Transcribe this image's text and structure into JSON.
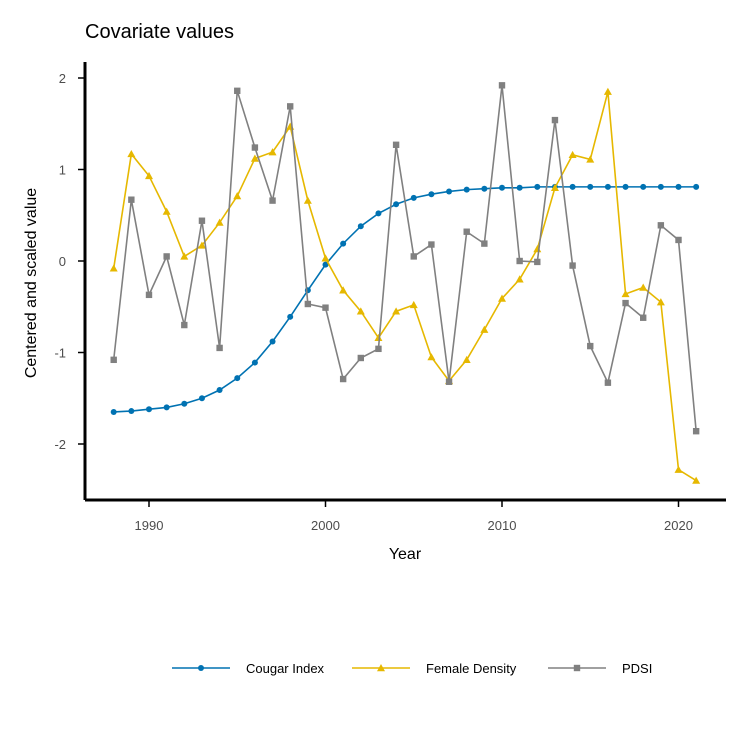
{
  "chart_data": {
    "type": "line",
    "title": "Covariate values",
    "xlabel": "Year",
    "ylabel": "Centered and scaled value",
    "xlim": [
      1984.7,
      1986.5
    ],
    "ylim": [
      -2.6,
      2.1
    ],
    "x_ticks": [
      1990,
      2000,
      2010,
      2020
    ],
    "x_tick_labels": [
      "1990",
      "2000",
      "2010",
      "2020"
    ],
    "y_ticks": [
      -2,
      -1,
      0,
      1,
      2
    ],
    "y_tick_labels": [
      "-2",
      "-1",
      "0",
      "1",
      "2"
    ],
    "grid": false,
    "legend_position": "bottom",
    "x": [
      1988,
      1989,
      1990,
      1991,
      1992,
      1993,
      1994,
      1995,
      1996,
      1997,
      1998,
      1999,
      2000,
      2001,
      2002,
      2003,
      2004,
      2005,
      2006,
      2007,
      2008,
      2009,
      2010,
      2011,
      2012,
      2013,
      2014,
      2015,
      2016,
      2017,
      2018,
      2019,
      2020,
      2021
    ],
    "series": [
      {
        "name": "Cougar Index",
        "color": "#0072B2",
        "marker": "circle",
        "values": [
          -1.65,
          -1.64,
          -1.62,
          -1.6,
          -1.56,
          -1.5,
          -1.41,
          -1.28,
          -1.11,
          -0.88,
          -0.61,
          -0.32,
          -0.04,
          0.19,
          0.38,
          0.52,
          0.62,
          0.69,
          0.73,
          0.76,
          0.78,
          0.79,
          0.8,
          0.8,
          0.81,
          0.81,
          0.81,
          0.81,
          0.81,
          0.81,
          0.81,
          0.81,
          0.81,
          0.81
        ]
      },
      {
        "name": "Female Density",
        "color": "#E6B800",
        "marker": "triangle",
        "values": [
          -0.08,
          1.17,
          0.93,
          0.54,
          0.05,
          0.17,
          0.42,
          0.71,
          1.12,
          1.19,
          1.47,
          0.66,
          0.03,
          -0.32,
          -0.55,
          -0.84,
          -0.55,
          -0.48,
          -1.05,
          -1.31,
          -1.08,
          -0.75,
          -0.41,
          -0.2,
          0.13,
          0.8,
          1.16,
          1.11,
          1.85,
          -0.36,
          -0.29,
          -0.45,
          -2.28,
          -2.4
        ]
      },
      {
        "name": "PDSI",
        "color": "#808080",
        "marker": "square",
        "values": [
          -1.08,
          0.67,
          -0.37,
          0.05,
          -0.7,
          0.44,
          -0.95,
          1.86,
          1.24,
          0.66,
          1.69,
          -0.47,
          -0.51,
          -1.29,
          -1.06,
          -0.96,
          1.27,
          0.05,
          0.18,
          -1.32,
          0.32,
          0.19,
          1.92,
          0.0,
          -0.01,
          1.54,
          -0.05,
          -0.93,
          -1.33,
          -0.46,
          -0.62,
          0.39,
          0.23,
          -1.86
        ]
      }
    ]
  }
}
